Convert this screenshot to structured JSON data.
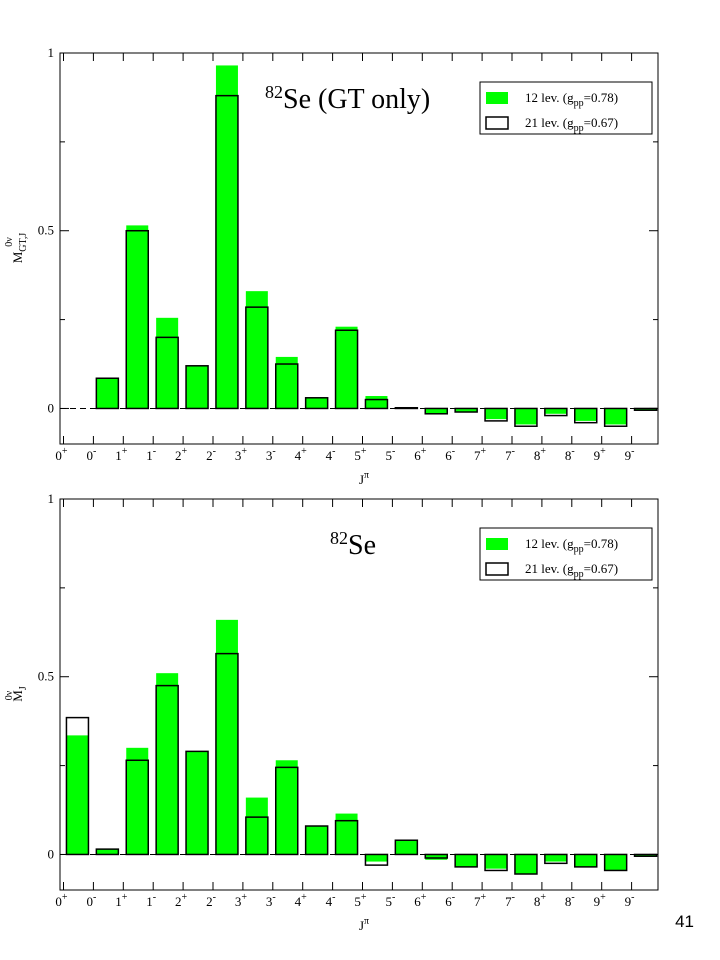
{
  "page_number": "41",
  "chart_data": [
    {
      "type": "bar",
      "title": {
        "mass": "82",
        "text": "Se (GT only)"
      },
      "ylabel": {
        "base": "M",
        "sup": "0ν",
        "sub": "GT,J"
      },
      "xlabel": {
        "base": "J",
        "sup": "π"
      },
      "ylim": [
        -0.1,
        1
      ],
      "yticks": [
        "0",
        "0.5",
        "1"
      ],
      "categories": [
        {
          "j": "0",
          "p": "+"
        },
        {
          "j": "0",
          "p": "-"
        },
        {
          "j": "1",
          "p": "+"
        },
        {
          "j": "1",
          "p": "-"
        },
        {
          "j": "2",
          "p": "+"
        },
        {
          "j": "2",
          "p": "-"
        },
        {
          "j": "3",
          "p": "+"
        },
        {
          "j": "3",
          "p": "-"
        },
        {
          "j": "4",
          "p": "+"
        },
        {
          "j": "4",
          "p": "-"
        },
        {
          "j": "5",
          "p": "+"
        },
        {
          "j": "5",
          "p": "-"
        },
        {
          "j": "6",
          "p": "+"
        },
        {
          "j": "6",
          "p": "-"
        },
        {
          "j": "7",
          "p": "+"
        },
        {
          "j": "7",
          "p": "-"
        },
        {
          "j": "8",
          "p": "+"
        },
        {
          "j": "8",
          "p": "-"
        },
        {
          "j": "9",
          "p": "+"
        },
        {
          "j": "9",
          "p": "-"
        }
      ],
      "legend": [
        {
          "label": "12 lev. (g",
          "sub": "pp",
          "rest": "=0.78)",
          "style": "filled"
        },
        {
          "label": "21 lev. (g",
          "sub": "pp",
          "rest": "=0.67)",
          "style": "outline"
        }
      ],
      "series": [
        {
          "name": "12 lev. (gpp=0.78)",
          "color": "#00ff00",
          "values": [
            0.0,
            0.085,
            0.515,
            0.255,
            0.12,
            0.965,
            0.33,
            0.145,
            0.03,
            0.23,
            0.035,
            0.003,
            -0.015,
            -0.01,
            -0.03,
            -0.045,
            -0.015,
            -0.035,
            -0.045,
            -0.005
          ]
        },
        {
          "name": "21 lev. (gpp=0.67)",
          "color": "#000000",
          "values": [
            0.0,
            0.085,
            0.5,
            0.2,
            0.12,
            0.88,
            0.285,
            0.125,
            0.03,
            0.22,
            0.025,
            0.002,
            -0.015,
            -0.01,
            -0.035,
            -0.05,
            -0.02,
            -0.04,
            -0.05,
            -0.005
          ]
        }
      ]
    },
    {
      "type": "bar",
      "title": {
        "mass": "82",
        "text": "Se"
      },
      "ylabel": {
        "base": "M",
        "sup": "0ν",
        "sub": "J"
      },
      "xlabel": {
        "base": "J",
        "sup": "π"
      },
      "ylim": [
        -0.1,
        1
      ],
      "yticks": [
        "0",
        "0.5",
        "1"
      ],
      "categories": [
        {
          "j": "0",
          "p": "+"
        },
        {
          "j": "0",
          "p": "-"
        },
        {
          "j": "1",
          "p": "+"
        },
        {
          "j": "1",
          "p": "-"
        },
        {
          "j": "2",
          "p": "+"
        },
        {
          "j": "2",
          "p": "-"
        },
        {
          "j": "3",
          "p": "+"
        },
        {
          "j": "3",
          "p": "-"
        },
        {
          "j": "4",
          "p": "+"
        },
        {
          "j": "4",
          "p": "-"
        },
        {
          "j": "5",
          "p": "+"
        },
        {
          "j": "5",
          "p": "-"
        },
        {
          "j": "6",
          "p": "+"
        },
        {
          "j": "6",
          "p": "-"
        },
        {
          "j": "7",
          "p": "+"
        },
        {
          "j": "7",
          "p": "-"
        },
        {
          "j": "8",
          "p": "+"
        },
        {
          "j": "8",
          "p": "-"
        },
        {
          "j": "9",
          "p": "+"
        },
        {
          "j": "9",
          "p": "-"
        }
      ],
      "legend": [
        {
          "label": "12 lev. (g",
          "sub": "pp",
          "rest": "=0.78)",
          "style": "filled"
        },
        {
          "label": "21 lev. (g",
          "sub": "pp",
          "rest": "=0.67)",
          "style": "outline"
        }
      ],
      "series": [
        {
          "name": "12 lev. (gpp=0.78)",
          "color": "#00ff00",
          "values": [
            0.335,
            0.015,
            0.3,
            0.51,
            0.29,
            0.66,
            0.16,
            0.265,
            0.08,
            0.115,
            -0.02,
            0.04,
            -0.015,
            -0.035,
            -0.04,
            -0.055,
            -0.02,
            -0.035,
            -0.045,
            -0.005
          ]
        },
        {
          "name": "21 lev. (gpp=0.67)",
          "color": "#000000",
          "values": [
            0.385,
            0.015,
            0.265,
            0.475,
            0.29,
            0.565,
            0.105,
            0.245,
            0.08,
            0.095,
            -0.03,
            0.04,
            -0.01,
            -0.035,
            -0.045,
            -0.055,
            -0.025,
            -0.035,
            -0.045,
            -0.005
          ]
        }
      ]
    }
  ]
}
